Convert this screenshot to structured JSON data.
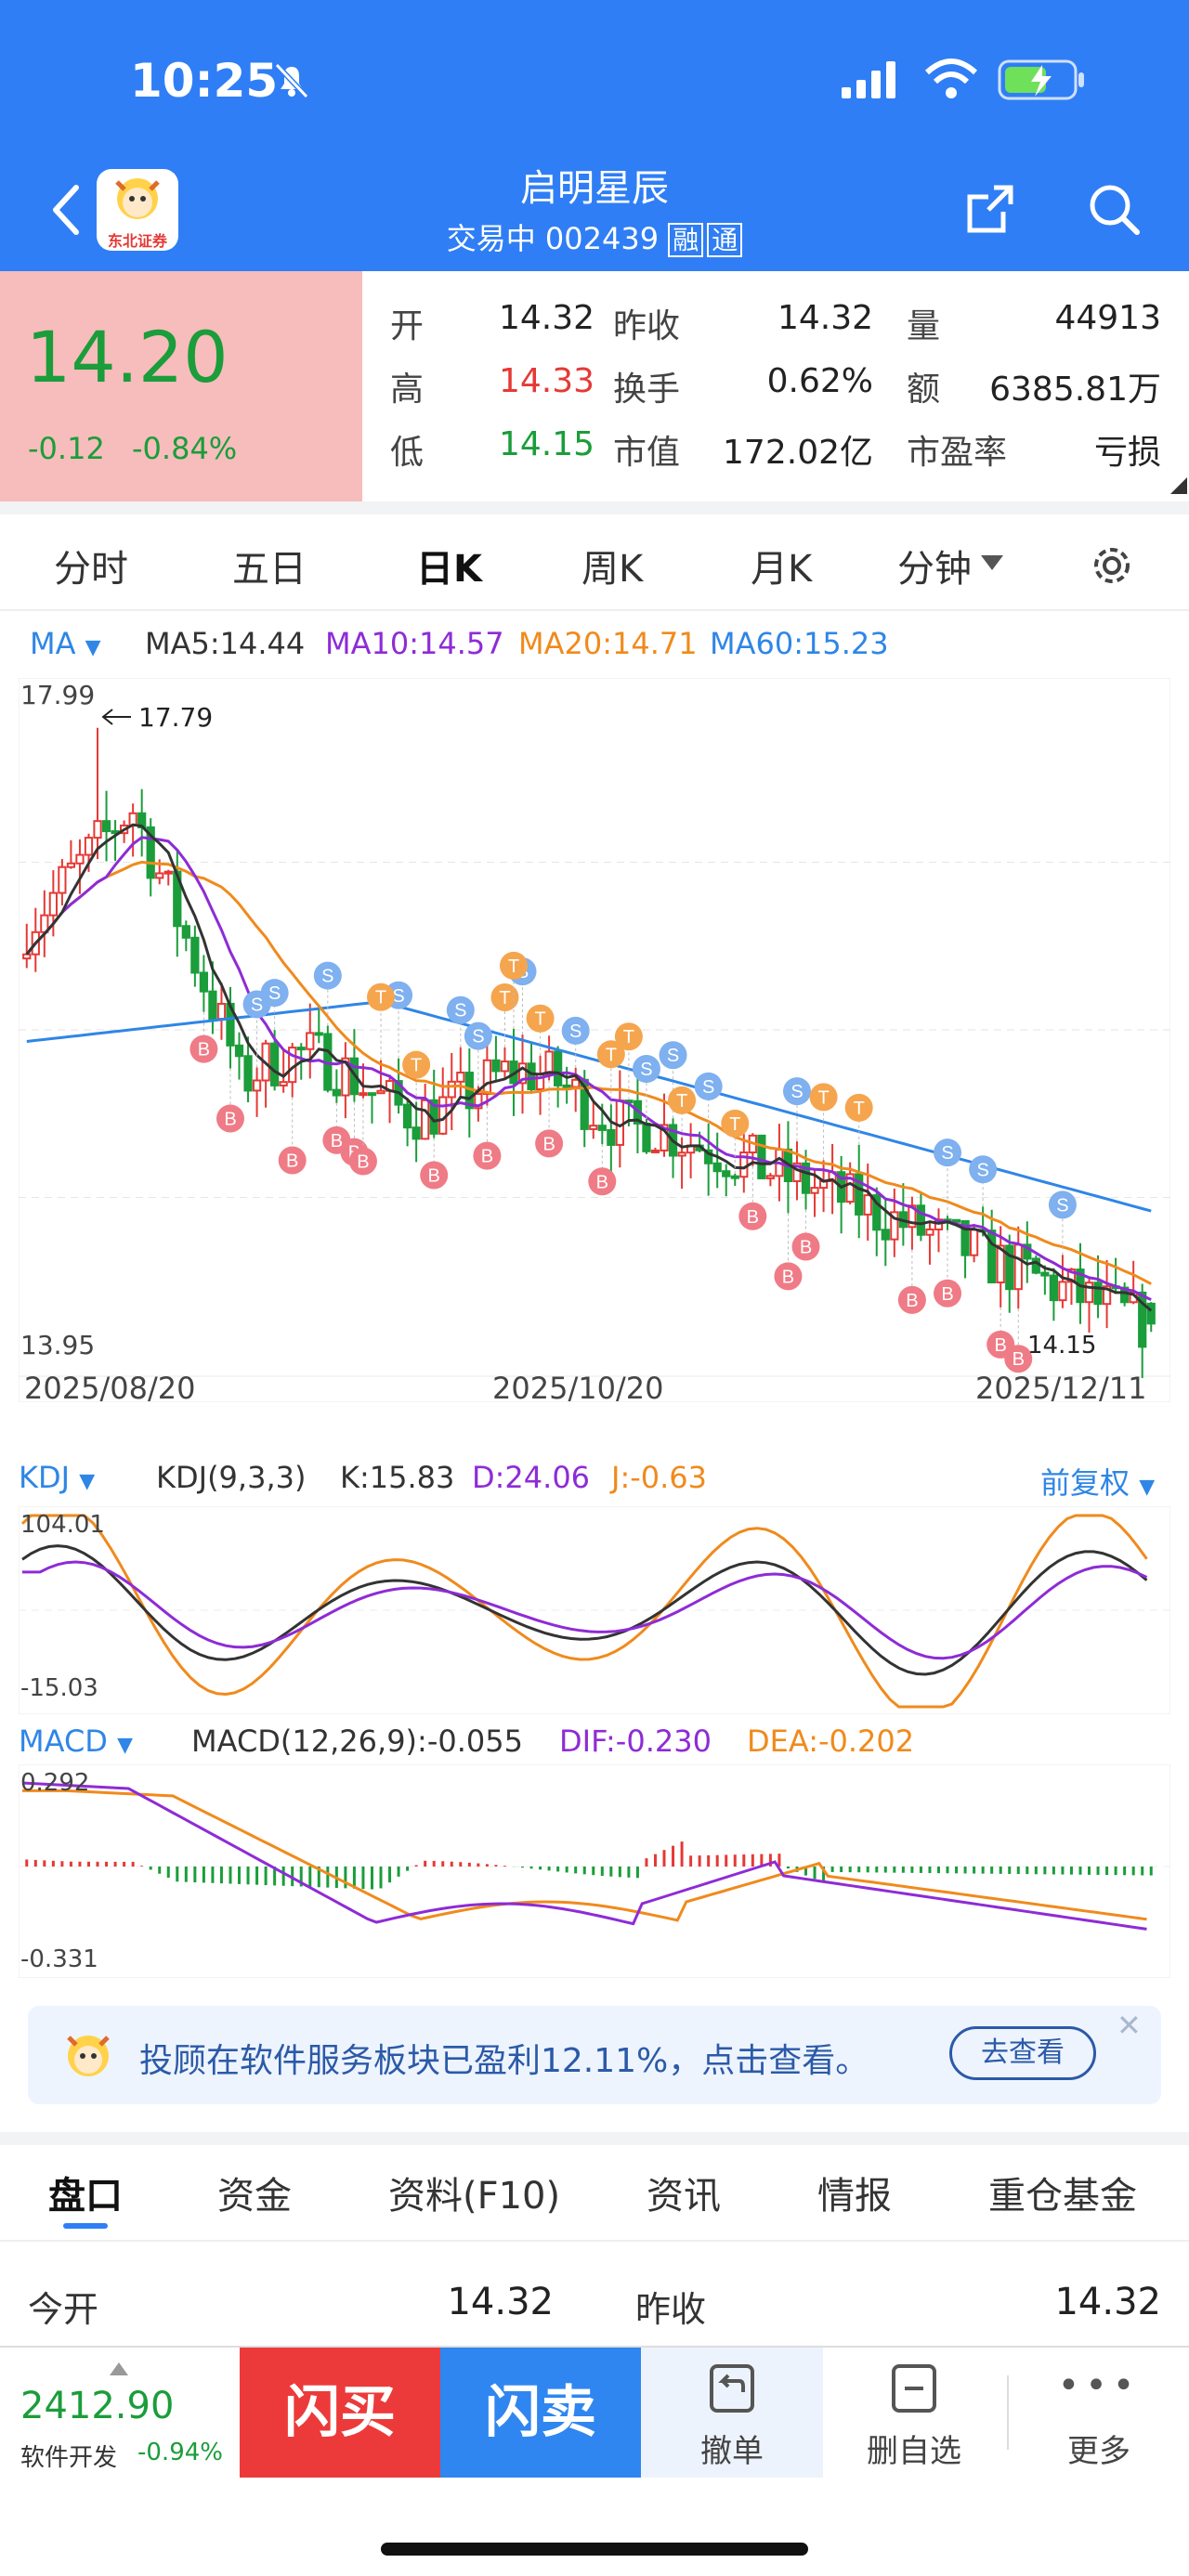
{
  "status_bar": {
    "time": "10:25"
  },
  "header": {
    "title": "启明星辰",
    "status": "交易中",
    "code": "002439",
    "badge1": "融",
    "badge2": "通",
    "logo_text": "东北证券"
  },
  "quote": {
    "price": "14.20",
    "change": "-0.12",
    "change_pct": "-0.84%",
    "stats": [
      {
        "label": "开",
        "value": "14.32",
        "color": "#222"
      },
      {
        "label": "昨收",
        "value": "14.32",
        "color": "#222"
      },
      {
        "label": "量",
        "value": "44913",
        "color": "#222"
      },
      {
        "label": "高",
        "value": "14.33",
        "color": "#e53935"
      },
      {
        "label": "换手",
        "value": "0.62%",
        "color": "#222"
      },
      {
        "label": "额",
        "value": "6385.81万",
        "color": "#222"
      },
      {
        "label": "低",
        "value": "14.15",
        "color": "#1a9d3a"
      },
      {
        "label": "市值",
        "value": "172.02亿",
        "color": "#222"
      },
      {
        "label": "市盈率",
        "value": "亏损",
        "color": "#222"
      }
    ]
  },
  "period_tabs": [
    "分时",
    "五日",
    "日K",
    "周K",
    "月K",
    "分钟"
  ],
  "active_period": "日K",
  "ma_legend": {
    "toggle": "MA",
    "items": [
      {
        "text": "MA5:14.44",
        "color": "#333333"
      },
      {
        "text": "MA10:14.57",
        "color": "#8e2bd6"
      },
      {
        "text": "MA20:14.71",
        "color": "#f08a1c"
      },
      {
        "text": "MA60:15.23",
        "color": "#2f86e6"
      }
    ]
  },
  "chart_data": {
    "type": "candlestick",
    "y_max_label": "17.99",
    "y_min_label": "13.95",
    "ylim": [
      13.95,
      17.99
    ],
    "high_marker": "17.79",
    "low_marker": "14.15",
    "date_labels": [
      "2025/08/20",
      "2025/10/20",
      "2025/12/11"
    ],
    "marker_colors": {
      "B": "#ef7b86",
      "S": "#7fb0ef",
      "T": "#f5a54e"
    }
  },
  "kdj": {
    "toggle": "KDJ",
    "params": "KDJ(9,3,3)",
    "k": "K:15.83",
    "d": "D:24.06",
    "j": "J:-0.63",
    "adjust": "前复权",
    "max_label": "104.01",
    "min_label": "-15.03"
  },
  "macd": {
    "toggle": "MACD",
    "params": "MACD(12,26,9):-0.055",
    "dif": "DIF:-0.230",
    "dea": "DEA:-0.202",
    "max_label": "0.292",
    "min_label": "-0.331"
  },
  "promo": {
    "text": "投顾在软件服务板块已盈利12.11%，点击查看。",
    "button": "去查看"
  },
  "sub_tabs": [
    "盘口",
    "资金",
    "资料(F10)",
    "资讯",
    "情报",
    "重仓基金"
  ],
  "active_sub_tab": "盘口",
  "detail_row": {
    "label1": "今开",
    "value1": "14.32",
    "label2": "昨收",
    "value2": "14.32"
  },
  "bottom_bar": {
    "index_value": "2412.90",
    "index_name": "软件开发",
    "index_change": "-0.94%",
    "buy": "闪买",
    "sell": "闪卖",
    "cancel": "撤单",
    "remove": "删自选",
    "more": "更多"
  }
}
